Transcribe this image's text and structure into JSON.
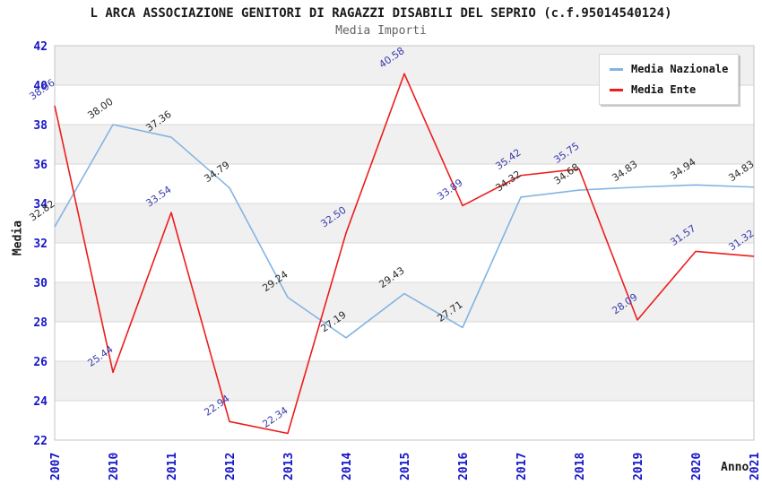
{
  "chart_data": {
    "type": "line",
    "title": "L ARCA ASSOCIAZIONE GENITORI DI RAGAZZI DISABILI DEL SEPRIO (c.f.95014540124)",
    "subtitle": "Media Importi",
    "xlabel": "Anno",
    "ylabel": "Media",
    "ylim": [
      22,
      42
    ],
    "y_ticks": [
      22,
      24,
      26,
      28,
      30,
      32,
      34,
      36,
      38,
      40,
      42
    ],
    "categories": [
      "2007",
      "2010",
      "2011",
      "2012",
      "2013",
      "2014",
      "2015",
      "2016",
      "2017",
      "2018",
      "2019",
      "2020",
      "2021"
    ],
    "series": [
      {
        "name": "Media Nazionale",
        "color": "#82b4e2",
        "label_color": "#2a2a2a",
        "values": [
          32.82,
          38.0,
          37.36,
          34.79,
          29.24,
          27.19,
          29.43,
          27.71,
          34.32,
          34.68,
          34.83,
          34.94,
          34.83
        ]
      },
      {
        "name": "Media Ente",
        "color": "#ee1c1c",
        "label_color": "#3a3aae",
        "values": [
          38.96,
          25.44,
          33.54,
          22.94,
          22.34,
          32.5,
          40.58,
          33.89,
          35.42,
          35.75,
          28.09,
          31.57,
          31.32
        ]
      }
    ],
    "legend_position": "top-right",
    "grid": "horizontal-bands",
    "colors": {
      "tick_label": "#1616c8",
      "band_fill": "#f0f0f0",
      "grid_line": "#d9d9d9",
      "plot_border": "#c4c4c4"
    }
  }
}
